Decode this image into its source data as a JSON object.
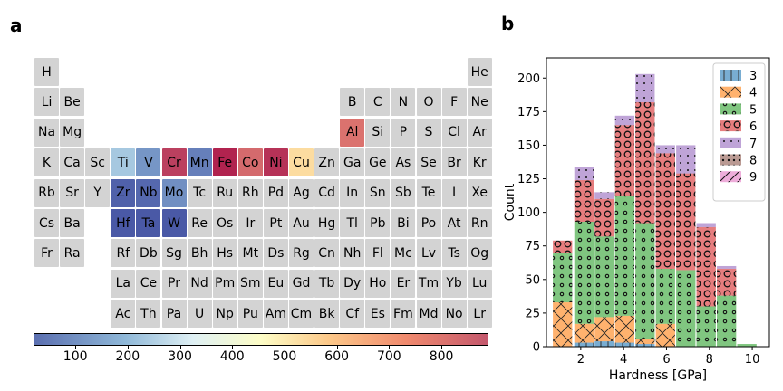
{
  "panel_a_label": "a",
  "panel_b_label": "b",
  "periodic_table": {
    "empty_color": "#d3d3d3",
    "rows": [
      [
        "H",
        null,
        null,
        null,
        null,
        null,
        null,
        null,
        null,
        null,
        null,
        null,
        null,
        null,
        null,
        null,
        null,
        "He"
      ],
      [
        "Li",
        "Be",
        null,
        null,
        null,
        null,
        null,
        null,
        null,
        null,
        null,
        null,
        "B",
        "C",
        "N",
        "O",
        "F",
        "Ne"
      ],
      [
        "Na",
        "Mg",
        null,
        null,
        null,
        null,
        null,
        null,
        null,
        null,
        null,
        null,
        "Al",
        "Si",
        "P",
        "S",
        "Cl",
        "Ar"
      ],
      [
        "K",
        "Ca",
        "Sc",
        "Ti",
        "V",
        "Cr",
        "Mn",
        "Fe",
        "Co",
        "Ni",
        "Cu",
        "Zn",
        "Ga",
        "Ge",
        "As",
        "Se",
        "Br",
        "Kr"
      ],
      [
        "Rb",
        "Sr",
        "Y",
        "Zr",
        "Nb",
        "Mo",
        "Tc",
        "Ru",
        "Rh",
        "Pd",
        "Ag",
        "Cd",
        "In",
        "Sn",
        "Sb",
        "Te",
        "I",
        "Xe"
      ],
      [
        "Cs",
        "Ba",
        null,
        "Hf",
        "Ta",
        "W",
        "Re",
        "Os",
        "Ir",
        "Pt",
        "Au",
        "Hg",
        "Tl",
        "Pb",
        "Bi",
        "Po",
        "At",
        "Rn"
      ],
      [
        "Fr",
        "Ra",
        null,
        "Rf",
        "Db",
        "Sg",
        "Bh",
        "Hs",
        "Mt",
        "Ds",
        "Rg",
        "Cn",
        "Nh",
        "Fl",
        "Mc",
        "Lv",
        "Ts",
        "Og"
      ],
      [
        null,
        null,
        null,
        "La",
        "Ce",
        "Pr",
        "Nd",
        "Pm",
        "Sm",
        "Eu",
        "Gd",
        "Tb",
        "Dy",
        "Ho",
        "Er",
        "Tm",
        "Yb",
        "Lu"
      ],
      [
        null,
        null,
        null,
        "Ac",
        "Th",
        "Pa",
        "U",
        "Np",
        "Pu",
        "Am",
        "Cm",
        "Bk",
        "Cf",
        "Es",
        "Fm",
        "Md",
        "No",
        "Lr"
      ]
    ],
    "element_values": {
      "Ti": 180,
      "V": 100,
      "Cr": 800,
      "Mn": 70,
      "Fe": 840,
      "Co": 720,
      "Ni": 820,
      "Cu": 470,
      "Al": 700,
      "Zr": 30,
      "Nb": 40,
      "Mo": 90,
      "Hf": 10,
      "Ta": 15,
      "W": 20
    },
    "colorbar": {
      "min": 20,
      "max": 890,
      "ticks": [
        100,
        200,
        300,
        400,
        500,
        600,
        700,
        800
      ],
      "colors": [
        "#4a59a6",
        "#8fb8d8",
        "#dff0f4",
        "#fdfdc6",
        "#fcc889",
        "#f08a6e",
        "#c4586d",
        "#a5003a"
      ]
    }
  },
  "chart_data": {
    "type": "bar",
    "stacked": true,
    "xlabel": "Hardness [GPa]",
    "ylabel": "Count",
    "xlim": [
      0.4,
      10.8
    ],
    "ylim": [
      0,
      215
    ],
    "xticks": [
      2,
      4,
      6,
      8,
      10
    ],
    "yticks": [
      0,
      25,
      50,
      75,
      100,
      125,
      150,
      175,
      200
    ],
    "legend_position": "top-right",
    "bin_width": 0.9,
    "bin_centers": [
      1.15,
      2.15,
      3.1,
      4.05,
      5.0,
      5.95,
      6.9,
      7.85,
      8.8,
      9.75
    ],
    "series": [
      {
        "name": "3",
        "color": "#1f77b4",
        "values": [
          0,
          3,
          4,
          3,
          2,
          0,
          0,
          0,
          0,
          0
        ]
      },
      {
        "name": "4",
        "color": "#ff7f0e",
        "values": [
          33,
          14,
          18,
          20,
          4,
          17,
          0,
          0,
          0,
          0
        ]
      },
      {
        "name": "5",
        "color": "#2ca02c",
        "values": [
          37,
          76,
          60,
          89,
          86,
          41,
          57,
          30,
          38,
          2
        ]
      },
      {
        "name": "6",
        "color": "#d62728",
        "values": [
          9,
          31,
          28,
          53,
          90,
          86,
          72,
          59,
          20,
          0
        ]
      },
      {
        "name": "7",
        "color": "#9467bd",
        "values": [
          0,
          10,
          5,
          7,
          21,
          6,
          21,
          3,
          2,
          0
        ]
      },
      {
        "name": "8",
        "color": "#8c564b",
        "values": [
          0,
          0,
          0,
          0,
          0,
          0,
          0,
          0,
          0,
          0
        ]
      },
      {
        "name": "9",
        "color": "#e377c2",
        "values": [
          0,
          0,
          0,
          0,
          0,
          0,
          0,
          0,
          0,
          0
        ]
      }
    ]
  }
}
